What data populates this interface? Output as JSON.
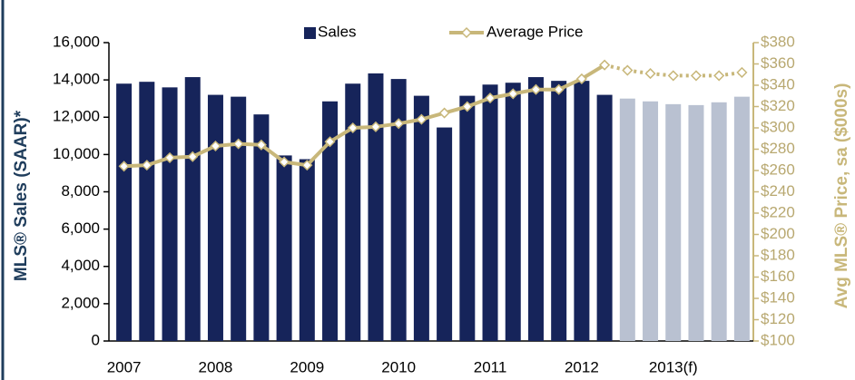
{
  "chart_data": {
    "type": "bar_line",
    "categories": [
      "2007",
      null,
      null,
      null,
      "2008",
      null,
      null,
      null,
      "2009",
      null,
      null,
      null,
      "2010",
      null,
      null,
      null,
      "2011",
      null,
      null,
      null,
      "2012",
      null,
      null,
      null,
      "2013(f)",
      null,
      null,
      null
    ],
    "y_label": "MLS® Sales (SAAR)*",
    "y2_label": "Avg MLS® Price, sa  ($000s)",
    "series": [
      {
        "name": "Sales",
        "type": "bar",
        "color": "#16245a",
        "colors": [
          "#16245a",
          "#16245a",
          "#16245a",
          "#16245a",
          "#16245a",
          "#16245a",
          "#16245a",
          "#16245a",
          "#16245a",
          "#16245a",
          "#16245a",
          "#16245a",
          "#16245a",
          "#16245a",
          "#16245a",
          "#16245a",
          "#16245a",
          "#16245a",
          "#16245a",
          "#16245a",
          "#16245a",
          "#16245a",
          "#b9c1d1",
          "#b9c1d1",
          "#b9c1d1",
          "#b9c1d1",
          "#b9c1d1",
          "#b9c1d1"
        ],
        "values": [
          13800,
          13900,
          13600,
          14150,
          13200,
          13100,
          12150,
          9950,
          9750,
          12850,
          13800,
          14350,
          14050,
          13150,
          11450,
          13150,
          13750,
          13850,
          14150,
          13950,
          13950,
          13200,
          13000,
          12850,
          12700,
          12650,
          12800,
          13100
        ]
      },
      {
        "name": "Average Price",
        "type": "line",
        "axis": "y2",
        "color": "#c8b77a",
        "line_styles": [
          "solid",
          "solid",
          "solid",
          "solid",
          "solid",
          "solid",
          "solid",
          "solid",
          "solid",
          "solid",
          "solid",
          "solid",
          "solid",
          "solid",
          "solid",
          "solid",
          "solid",
          "solid",
          "solid",
          "solid",
          "solid",
          "solid",
          "dotted",
          "dotted",
          "dotted",
          "dotted",
          "dotted",
          "dotted"
        ],
        "values": [
          264,
          265,
          272,
          273,
          283,
          285,
          284,
          268,
          265,
          287,
          300,
          301,
          304,
          308,
          314,
          320,
          328,
          332,
          336,
          336,
          346,
          359,
          354,
          351,
          349,
          349,
          349,
          352
        ]
      }
    ],
    "ylim": [
      0,
      16000
    ],
    "yticks": [
      0,
      {
        "value": 2000,
        "label": "2,000"
      },
      {
        "value": 4000,
        "label": "4,000"
      },
      {
        "value": 6000,
        "label": "6,000"
      },
      {
        "value": 8000,
        "label": "8,000"
      },
      {
        "value": 10000,
        "label": "10,000"
      },
      {
        "value": 12000,
        "label": "12,000"
      },
      {
        "value": 14000,
        "label": "14,000"
      },
      {
        "value": 16000,
        "label": "16,000"
      }
    ],
    "y2lim": [
      100,
      380
    ],
    "y2ticks": [
      {
        "value": 100,
        "label": "$100"
      },
      {
        "value": 120,
        "label": "$120"
      },
      {
        "value": 140,
        "label": "$140"
      },
      {
        "value": 160,
        "label": "$160"
      },
      {
        "value": 180,
        "label": "$180"
      },
      {
        "value": 200,
        "label": "$200"
      },
      {
        "value": 220,
        "label": "$220"
      },
      {
        "value": 240,
        "label": "$240"
      },
      {
        "value": 260,
        "label": "$260"
      },
      {
        "value": 280,
        "label": "$280"
      },
      {
        "value": 300,
        "label": "$300"
      },
      {
        "value": 320,
        "label": "$320"
      },
      {
        "value": 340,
        "label": "$340"
      },
      {
        "value": 360,
        "label": "$360"
      },
      {
        "value": 380,
        "label": "$380"
      }
    ],
    "legend": "top"
  }
}
